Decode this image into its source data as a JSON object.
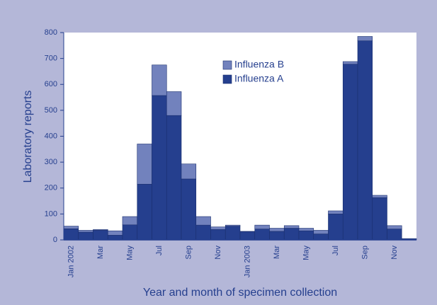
{
  "chart_data": {
    "type": "stacked-bar",
    "xlabel": "Year and month of specimen collection",
    "ylabel": "Laboratory reports",
    "categories": [
      "Jan 2002",
      null,
      "Mar",
      null,
      "May",
      null,
      "Jul",
      null,
      "Sep",
      null,
      "Nov",
      null,
      "Jan 2003",
      null,
      "Mar",
      null,
      "May",
      null,
      "Jul",
      null,
      "Sep",
      null,
      "Nov",
      null
    ],
    "series": [
      {
        "name": "Influenza A",
        "color": "#253f8e",
        "values": [
          43,
          30,
          37,
          18,
          58,
          215,
          557,
          480,
          235,
          57,
          40,
          53,
          32,
          42,
          33,
          45,
          35,
          23,
          100,
          678,
          768,
          163,
          42,
          5
        ]
      },
      {
        "name": "Influenza B",
        "color": "#7282bd",
        "values": [
          10,
          7,
          3,
          17,
          32,
          155,
          118,
          92,
          58,
          33,
          10,
          4,
          1,
          15,
          12,
          10,
          10,
          14,
          12,
          10,
          17,
          9,
          13,
          0
        ]
      }
    ],
    "ylim": [
      0,
      800
    ],
    "yticks": [
      0,
      100,
      200,
      300,
      400,
      500,
      600,
      700,
      800
    ],
    "legend": "top"
  }
}
